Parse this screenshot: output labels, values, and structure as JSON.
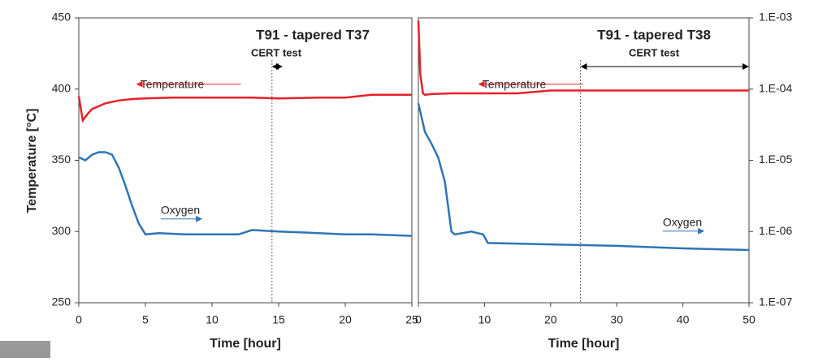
{
  "chart_data": [
    {
      "type": "line",
      "title": "T91 - tapered T37",
      "subtitle": "CERT test",
      "x_label": "Time [hour]",
      "y_label": "Temperature [°C]",
      "xlim": [
        0,
        25
      ],
      "xticks": [
        0,
        5,
        10,
        15,
        20,
        25
      ],
      "ylim": [
        250,
        450
      ],
      "yticks": [
        250,
        300,
        350,
        400,
        450
      ],
      "y2lim": [
        1e-07,
        0.001
      ],
      "y2log": true,
      "cert_range": [
        14.5,
        15.3
      ],
      "series": [
        {
          "name": "Temperature",
          "color": "#e8202a",
          "x": [
            0,
            0.3,
            0.7,
            1,
            2,
            3,
            4,
            5,
            7,
            10,
            13,
            15,
            18,
            20,
            21,
            22,
            25
          ],
          "values": [
            395,
            378,
            383,
            386,
            390,
            392,
            393,
            393.5,
            394,
            394,
            394,
            393.5,
            394,
            394,
            395,
            396,
            396
          ]
        },
        {
          "name": "Oxygen",
          "color": "#2e75b6",
          "axis": "y2",
          "x": [
            0,
            0.5,
            1,
            1.5,
            2,
            2.5,
            3,
            3.5,
            4,
            4.5,
            5,
            6,
            8,
            10,
            12,
            13,
            15,
            18,
            20,
            22,
            25
          ],
          "values": [
            1.1e-05,
            1e-05,
            1.2e-05,
            1.3e-05,
            1.3e-05,
            1.2e-05,
            7.9e-06,
            4.4e-06,
            2.3e-06,
            1.3e-06,
            9.1e-07,
            9.5e-07,
            9.1e-07,
            9.1e-07,
            9.1e-07,
            1.05e-06,
            1e-06,
            9.5e-07,
            9.1e-07,
            9.1e-07,
            8.7e-07
          ]
        }
      ]
    },
    {
      "type": "line",
      "title": "T91 - tapered T38",
      "subtitle": "CERT test",
      "x_label": "Time [hour]",
      "xlim": [
        0,
        50
      ],
      "xticks": [
        0,
        10,
        20,
        30,
        40,
        50
      ],
      "ylim": [
        250,
        450
      ],
      "y2lim": [
        1e-07,
        0.001
      ],
      "y2log": true,
      "cert_range": [
        24.5,
        50
      ],
      "y2ticks": [
        {
          "value": 1e-07,
          "label": "1.E-07"
        },
        {
          "value": 1e-06,
          "label": "1.E-06"
        },
        {
          "value": 1e-05,
          "label": "1.E-05"
        },
        {
          "value": 0.0001,
          "label": "1.E-04"
        },
        {
          "value": 0.001,
          "label": "1.E-03"
        }
      ],
      "series": [
        {
          "name": "Temperature",
          "color": "#e8202a",
          "x": [
            0,
            0.3,
            0.7,
            1,
            2,
            5,
            10,
            15,
            17.5,
            20,
            30,
            40,
            50
          ],
          "values": [
            448,
            410,
            397,
            396,
            396.5,
            397,
            397,
            397,
            398,
            399,
            399,
            399,
            399
          ]
        },
        {
          "name": "Oxygen",
          "color": "#2e75b6",
          "axis": "y2",
          "x": [
            0,
            1,
            2,
            3,
            4,
            5,
            5.5,
            8,
            9.8,
            10.5,
            20,
            30,
            40,
            50
          ],
          "values": [
            6.3e-05,
            2.5e-05,
            1.7e-05,
            1.1e-05,
            5e-06,
            1e-06,
            9.1e-07,
            1e-06,
            9.1e-07,
            6.9e-07,
            6.6e-07,
            6.3e-07,
            5.8e-07,
            5.5e-07
          ]
        }
      ]
    }
  ]
}
